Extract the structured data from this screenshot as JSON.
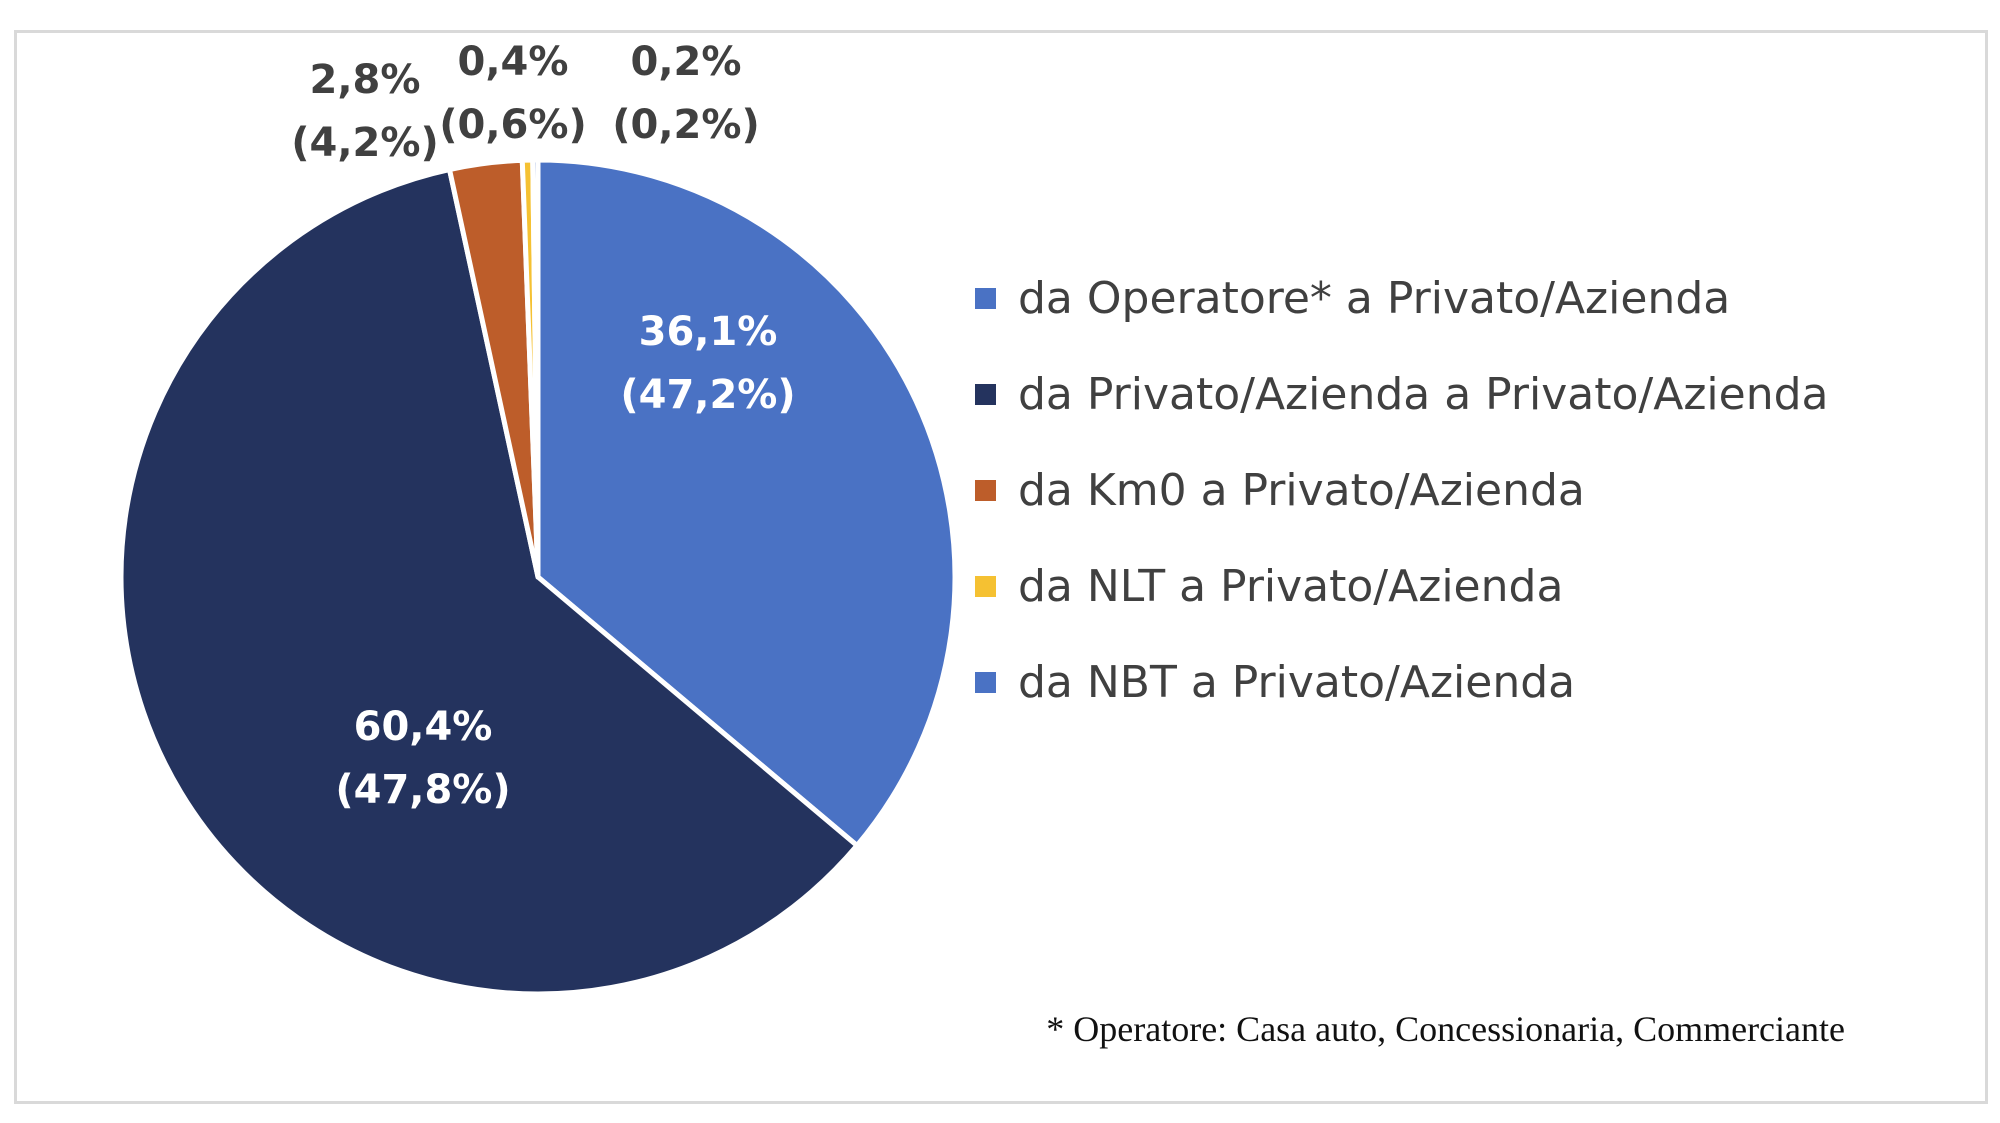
{
  "chart_data": {
    "type": "pie",
    "title": "",
    "slices": [
      {
        "label": "da Operatore* a Privato/Azienda",
        "value": 36.1,
        "value_text": "36,1%",
        "secondary_text": "(47,2%)",
        "color": "#4a72c4",
        "label_color": "#ffffff"
      },
      {
        "label": "da Privato/Azienda a Privato/Azienda",
        "value": 60.4,
        "value_text": "60,4%",
        "secondary_text": "(47,8%)",
        "color": "#24335e",
        "label_color": "#ffffff"
      },
      {
        "label": "da Km0 a Privato/Azienda",
        "value": 2.8,
        "value_text": "2,8%",
        "secondary_text": "(4,2%)",
        "color": "#bd5d2a",
        "label_color": "#404040"
      },
      {
        "label": "da NLT a Privato/Azienda",
        "value": 0.4,
        "value_text": "0,4%",
        "secondary_text": "(0,6%)",
        "color": "#f5c132",
        "label_color": "#404040"
      },
      {
        "label": "da NBT a Privato/Azienda",
        "value": 0.2,
        "value_text": "0,2%",
        "secondary_text": "(0,2%)",
        "color": "#4a72c4",
        "label_color": "#404040"
      }
    ],
    "legend_position": "right"
  },
  "footnote": "* Operatore: Casa auto, Concessionaria, Commerciante"
}
